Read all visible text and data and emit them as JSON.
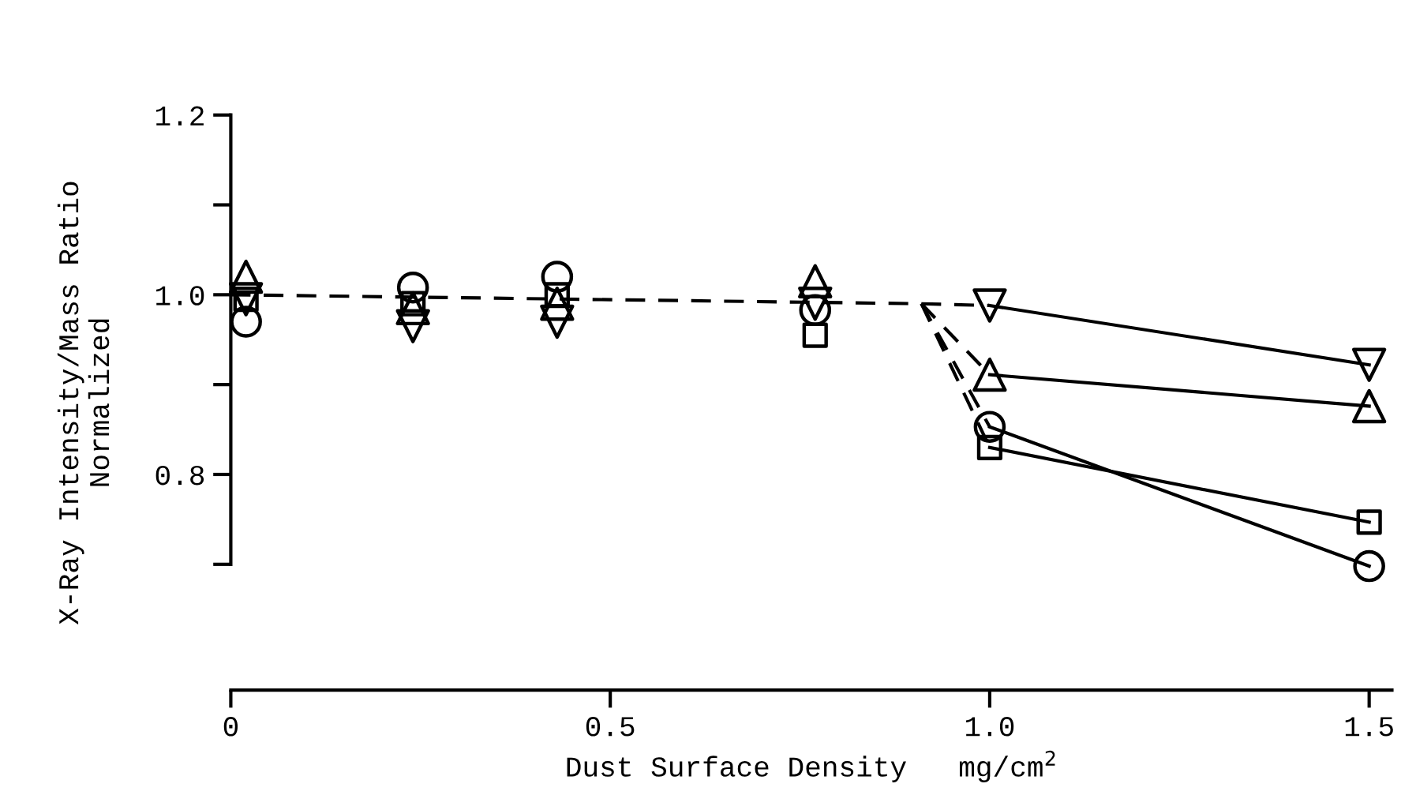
{
  "chart_data": {
    "type": "line",
    "xlabel": "Dust Surface Density   mg/cm$^{2}$",
    "ylabel": "X-Ray Intensity/Mass Ratio\nNormalized",
    "xlim": [
      0,
      1.53
    ],
    "ylim": [
      0.56,
      1.2
    ],
    "xticks": [
      0,
      0.5,
      {
        "value": 1.0,
        "label": "1.0"
      },
      1.5
    ],
    "yticks": [
      {
        "value": 0.7,
        "label": null
      },
      0.8,
      {
        "value": 0.9,
        "label": null
      },
      {
        "value": 1.0,
        "label": "1.0"
      },
      {
        "value": 1.1,
        "label": null
      },
      1.2
    ],
    "grid": false,
    "legend": false,
    "series": [
      {
        "line_style": "dashed",
        "marker": "none",
        "color": "#000000",
        "x": [
          0,
          0.91,
          1.0
        ],
        "values": [
          1.0,
          0.99,
          0.988
        ]
      },
      {
        "type": "line",
        "line_style": "dashed",
        "marker": "none",
        "color": "#000000",
        "x": [
          0.91,
          1.0
        ],
        "values": [
          0.99,
          0.853
        ]
      },
      {
        "type": "line",
        "line_style": "dashed",
        "marker": "none",
        "color": "#000000",
        "x": [
          0.91,
          1.0
        ],
        "values": [
          0.99,
          0.83
        ]
      },
      {
        "type": "line",
        "line_style": "dashed",
        "marker": "none",
        "color": "#000000",
        "x": [
          0.91,
          1.0
        ],
        "values": [
          0.99,
          0.911
        ]
      },
      {
        "type": "line",
        "line_style": "solid",
        "marker": "none",
        "color": "#000000",
        "x": [
          1.0,
          1.5
        ],
        "values": [
          0.853,
          0.698
        ]
      },
      {
        "type": "line",
        "line_style": "solid",
        "marker": "none",
        "color": "#000000",
        "x": [
          1.0,
          1.5
        ],
        "values": [
          0.83,
          0.747
        ]
      },
      {
        "type": "line",
        "line_style": "solid",
        "marker": "none",
        "color": "#000000",
        "x": [
          1.0,
          1.5
        ],
        "values": [
          0.911,
          0.876
        ]
      },
      {
        "type": "line",
        "line_style": "solid",
        "marker": "none",
        "color": "#000000",
        "x": [
          1.0,
          1.5
        ],
        "values": [
          0.988,
          0.922
        ]
      },
      {
        "type": "scatter",
        "marker": "circle",
        "color": "#000000",
        "x": [
          0.02,
          0.24,
          0.43,
          0.77,
          1.0,
          1.5
        ],
        "values": [
          0.97,
          1.008,
          1.02,
          0.983,
          0.853,
          0.698
        ]
      },
      {
        "type": "scatter",
        "marker": "square",
        "color": "#000000",
        "x": [
          0.02,
          0.24,
          0.43,
          0.77,
          1.0,
          1.5
        ],
        "values": [
          0.995,
          0.99,
          1.0,
          0.955,
          0.83,
          0.747
        ]
      },
      {
        "type": "scatter",
        "marker": "triangle",
        "color": "#000000",
        "x": [
          0.02,
          0.24,
          0.43,
          0.77,
          1.0,
          1.5
        ],
        "values": [
          1.02,
          0.985,
          0.99,
          1.015,
          0.911,
          0.876
        ]
      },
      {
        "type": "scatter",
        "marker": "triangle_down",
        "color": "#000000",
        "x": [
          0.02,
          0.24,
          0.43,
          0.77,
          1.0,
          1.5
        ],
        "values": [
          0.995,
          0.965,
          0.97,
          0.99,
          0.988,
          0.922
        ]
      }
    ]
  }
}
